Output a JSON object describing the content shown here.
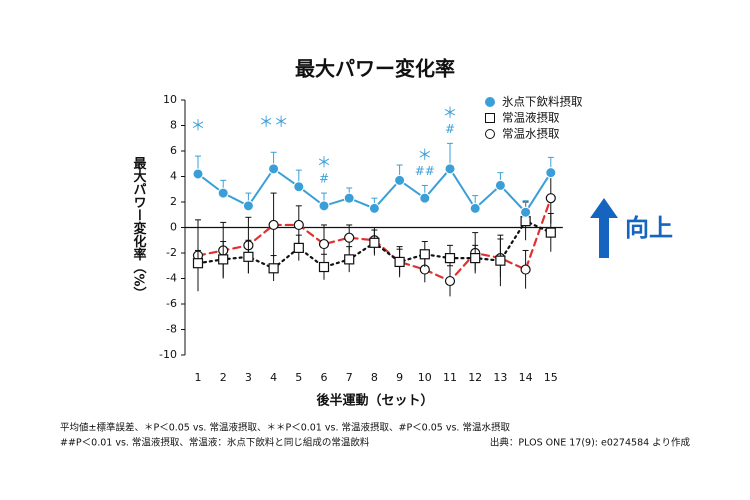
{
  "chart_data": {
    "type": "line",
    "title": "最大パワー変化率",
    "ylabel": "最大パワー変化率（%）",
    "xlabel": "後半運動（セット）",
    "categories": [
      "1",
      "2",
      "3",
      "4",
      "5",
      "6",
      "7",
      "8",
      "9",
      "10",
      "11",
      "12",
      "13",
      "14",
      "15"
    ],
    "ylim": [
      -10,
      10
    ],
    "yticks": [
      -10,
      -8,
      -6,
      -4,
      -2,
      0,
      2,
      4,
      6,
      8,
      10
    ],
    "legend": "top-right",
    "series": [
      {
        "name": "氷点下飲料摂取",
        "color": "#3a9fd8",
        "marker": "filled-circle",
        "line": "solid",
        "values": [
          4.2,
          2.7,
          1.7,
          4.6,
          3.2,
          1.7,
          2.3,
          1.5,
          3.7,
          2.3,
          4.6,
          1.5,
          3.3,
          1.2,
          4.3
        ],
        "errors": [
          1.4,
          1.0,
          1.0,
          1.3,
          1.3,
          1.0,
          0.8,
          0.8,
          1.2,
          1.0,
          2.0,
          1.0,
          1.0,
          0.9,
          1.2
        ]
      },
      {
        "name": "常温液摂取",
        "color": "#111111",
        "marker": "square",
        "line": "dotted",
        "values": [
          -2.8,
          -2.5,
          -2.3,
          -3.2,
          -1.6,
          -3.1,
          -2.5,
          -1.2,
          -2.7,
          -2.1,
          -2.4,
          -2.4,
          -2.6,
          0.5,
          -0.4
        ],
        "errors": [
          1.0,
          1.4,
          1.3,
          1.0,
          1.0,
          1.0,
          1.0,
          1.0,
          1.0,
          1.0,
          1.0,
          1.0,
          2.0,
          1.5,
          1.5
        ]
      },
      {
        "name": "常温水摂取",
        "color": "#e03030",
        "marker": "circle",
        "line": "dashed",
        "values": [
          -2.2,
          -1.8,
          -1.4,
          0.2,
          0.2,
          -1.3,
          -0.8,
          -1.0,
          -2.7,
          -3.3,
          -4.2,
          -2.0,
          -2.4,
          -3.3,
          2.3
        ],
        "errors": [
          2.8,
          2.2,
          2.2,
          2.5,
          1.5,
          1.5,
          1.0,
          1.0,
          1.2,
          1.0,
          1.2,
          1.6,
          1.5,
          1.5,
          2.0
        ]
      }
    ],
    "annotations": [
      {
        "text": "＊",
        "at": "1",
        "row": 0
      },
      {
        "text": "＊＊",
        "at": "4",
        "row": 0
      },
      {
        "text": "＊",
        "at": "6",
        "row": 0
      },
      {
        "text": "#",
        "at": "6",
        "row": 1
      },
      {
        "text": "＊",
        "at": "10",
        "row": 0
      },
      {
        "text": "##",
        "at": "10",
        "row": 1
      },
      {
        "text": "＊",
        "at": "11",
        "row": 0
      },
      {
        "text": "#",
        "at": "11",
        "row": 1
      }
    ],
    "callout": "向上",
    "footnotes": [
      "平均値±標準誤差、＊P＜0.05 vs. 常温液摂取、＊＊P＜0.01 vs. 常温液摂取、#P＜0.05 vs. 常温水摂取",
      "##P＜0.01 vs. 常温液摂取、常温液：氷点下飲料と同じ組成の常温飲料"
    ],
    "source": "出典：PLOS ONE 17(9): e0274584 より作成"
  }
}
